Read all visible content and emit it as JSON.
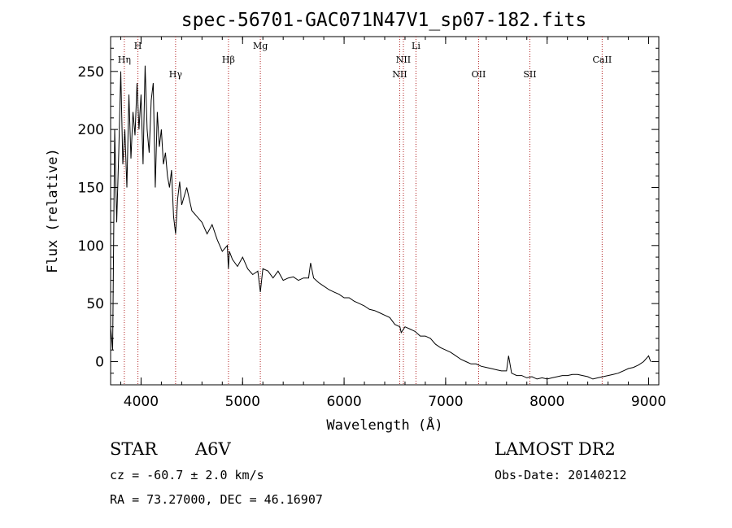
{
  "chart_data": {
    "type": "line",
    "title": "spec-56701-GAC071N47V1_sp07-182.fits",
    "xlabel": "Wavelength (Å)",
    "ylabel": "Flux (relative)",
    "xlim": [
      3700,
      9100
    ],
    "ylim": [
      -20,
      280
    ],
    "xticks": [
      {
        "value": 4000,
        "label": "4000"
      },
      {
        "value": 5000,
        "label": "5000"
      },
      {
        "value": 6000,
        "label": "6000"
      },
      {
        "value": 7000,
        "label": "7000"
      },
      {
        "value": 8000,
        "label": "8000"
      },
      {
        "value": 9000,
        "label": "9000"
      }
    ],
    "yticks": [
      {
        "value": 0,
        "label": "0"
      },
      {
        "value": 50,
        "label": "50"
      },
      {
        "value": 100,
        "label": "100"
      },
      {
        "value": 150,
        "label": "150"
      },
      {
        "value": 200,
        "label": "200"
      },
      {
        "value": 250,
        "label": "250"
      }
    ],
    "line_color": "#000000",
    "marker_color": "#b22222",
    "spectral_lines": [
      {
        "label": "Hη",
        "wavelength": 3835,
        "row": 2
      },
      {
        "label": "H",
        "wavelength": 3969,
        "row": 1
      },
      {
        "label": "Hγ",
        "wavelength": 4340,
        "row": 3
      },
      {
        "label": "Hβ",
        "wavelength": 4861,
        "row": 2
      },
      {
        "label": "Mg",
        "wavelength": 5175,
        "row": 1
      },
      {
        "label": "NII",
        "wavelength": 6548,
        "row": 3
      },
      {
        "label": "NII",
        "wavelength": 6584,
        "row": 2
      },
      {
        "label": "Li",
        "wavelength": 6708,
        "row": 1
      },
      {
        "label": "OII",
        "wavelength": 7325,
        "row": 3
      },
      {
        "label": "SII",
        "wavelength": 7830,
        "row": 3
      },
      {
        "label": "CaII",
        "wavelength": 8542,
        "row": 2
      }
    ],
    "series": [
      {
        "x": [
          3700,
          3720,
          3740,
          3760,
          3780,
          3800,
          3820,
          3840,
          3860,
          3880,
          3900,
          3920,
          3940,
          3960,
          3980,
          4000,
          4020,
          4040,
          4060,
          4080,
          4100,
          4120,
          4140,
          4160,
          4180,
          4200,
          4220,
          4240,
          4260,
          4280,
          4300,
          4320,
          4340,
          4360,
          4380,
          4400,
          4450,
          4500,
          4550,
          4600,
          4650,
          4700,
          4750,
          4800,
          4850,
          4860,
          4870,
          4900,
          4950,
          5000,
          5050,
          5100,
          5150,
          5175,
          5200,
          5250,
          5300,
          5350,
          5400,
          5450,
          5500,
          5550,
          5600,
          5650,
          5670,
          5700,
          5750,
          5800,
          5850,
          5900,
          5950,
          6000,
          6050,
          6100,
          6150,
          6200,
          6250,
          6300,
          6350,
          6400,
          6450,
          6500,
          6550,
          6563,
          6600,
          6650,
          6700,
          6750,
          6800,
          6850,
          6900,
          6950,
          7000,
          7050,
          7100,
          7150,
          7200,
          7250,
          7300,
          7350,
          7400,
          7450,
          7500,
          7550,
          7600,
          7620,
          7650,
          7700,
          7750,
          7800,
          7850,
          7900,
          7950,
          8000,
          8050,
          8100,
          8150,
          8200,
          8250,
          8300,
          8350,
          8400,
          8450,
          8500,
          8550,
          8600,
          8650,
          8700,
          8750,
          8800,
          8850,
          8900,
          8950,
          9000,
          9020
        ],
        "y": [
          30,
          10,
          200,
          120,
          180,
          250,
          170,
          200,
          150,
          230,
          175,
          215,
          195,
          240,
          200,
          230,
          170,
          255,
          200,
          180,
          225,
          240,
          150,
          215,
          185,
          200,
          170,
          180,
          160,
          150,
          165,
          125,
          110,
          140,
          155,
          135,
          150,
          130,
          125,
          120,
          110,
          118,
          105,
          95,
          100,
          80,
          95,
          88,
          82,
          90,
          80,
          75,
          78,
          60,
          80,
          78,
          72,
          78,
          70,
          72,
          73,
          70,
          72,
          72,
          85,
          72,
          68,
          65,
          62,
          60,
          58,
          55,
          55,
          52,
          50,
          48,
          45,
          44,
          42,
          40,
          38,
          32,
          30,
          25,
          30,
          28,
          26,
          22,
          22,
          20,
          15,
          12,
          10,
          8,
          5,
          2,
          0,
          -2,
          -2,
          -4,
          -5,
          -6,
          -7,
          -8,
          -8,
          5,
          -10,
          -12,
          -12,
          -14,
          -13,
          -15,
          -14,
          -15,
          -14,
          -13,
          -12,
          -12,
          -11,
          -11,
          -12,
          -13,
          -15,
          -14,
          -13,
          -12,
          -11,
          -10,
          -8,
          -6,
          -5,
          -3,
          0,
          5,
          0
        ]
      }
    ]
  },
  "info": {
    "object_class": "STAR",
    "spectral_type": "A6V",
    "survey": "LAMOST DR2",
    "velocity": "cz = -60.7 ± 2.0 km/s",
    "obs_date": "Obs-Date: 20140212",
    "coords": "RA =  73.27000, DEC =  46.16907"
  }
}
